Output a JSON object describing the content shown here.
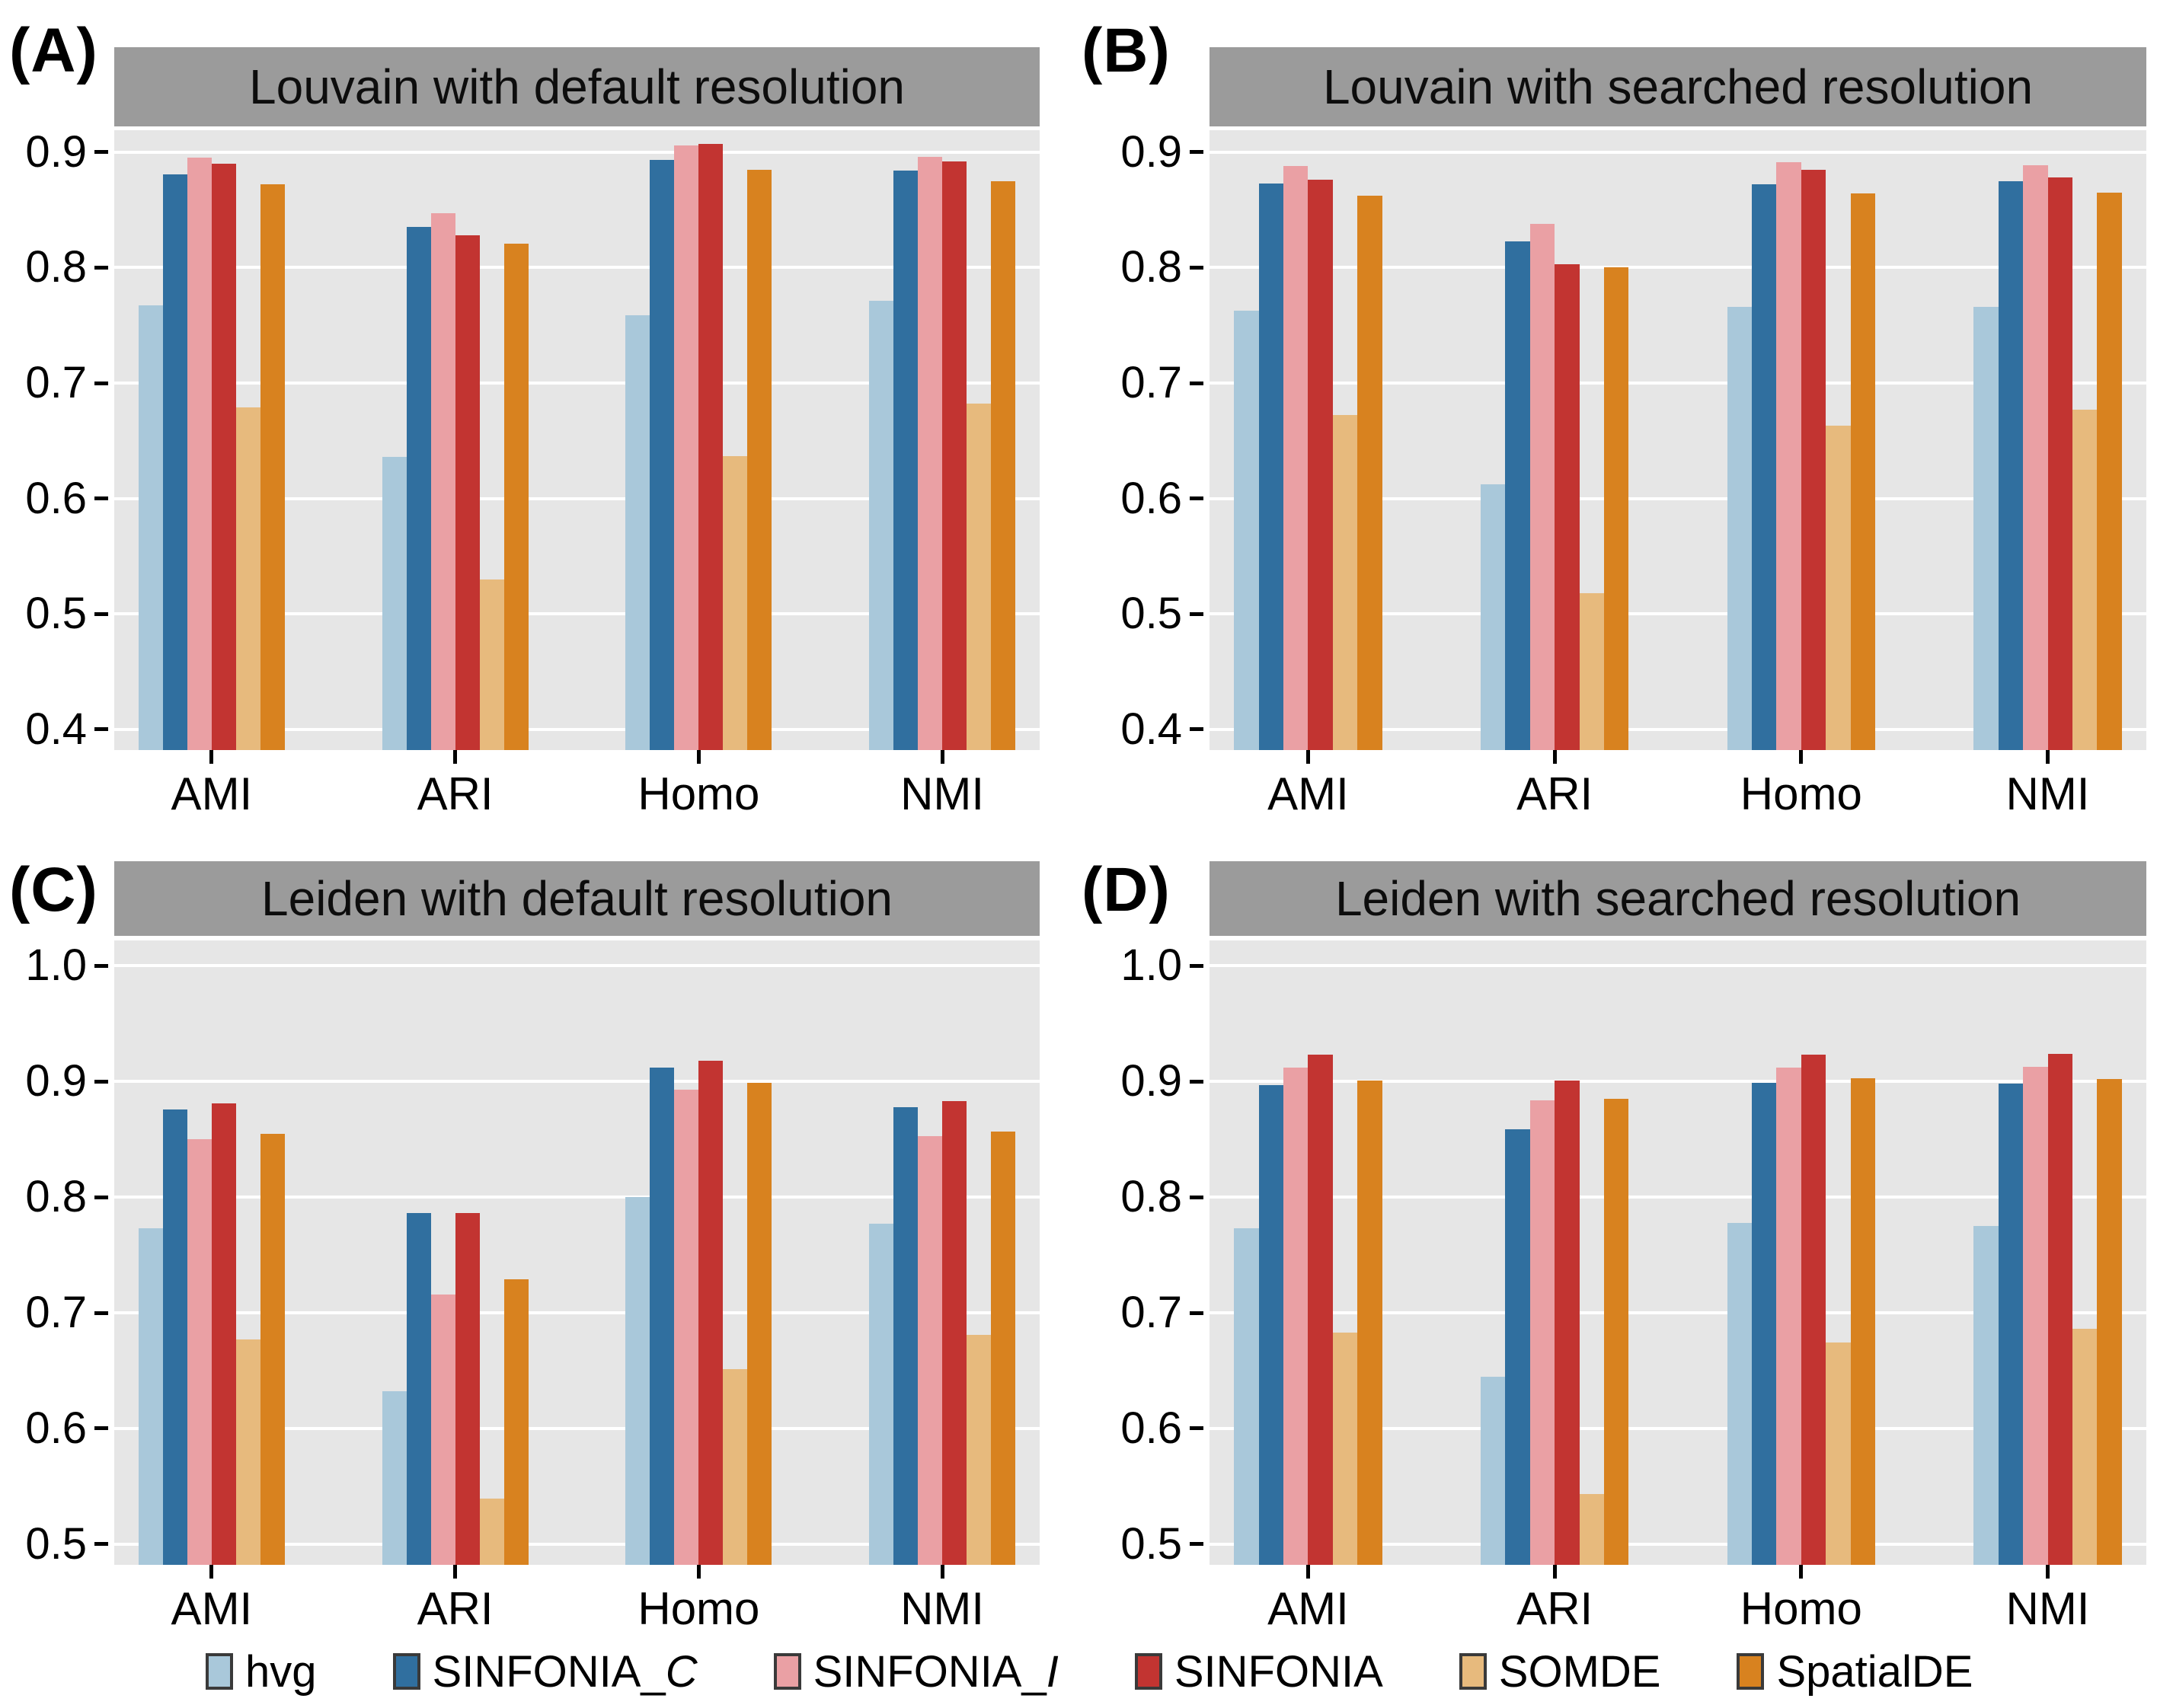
{
  "figure": {
    "background": "#ffffff",
    "panel_background": "#e6e6e6",
    "strip_background": "#9b9b9b",
    "gridline_color": "#ffffff"
  },
  "palette": {
    "hvg": "#a9c8da",
    "SINFONIA_C": "#306f9f",
    "SINFONIA_I": "#eaa0a4",
    "SINFONIA": "#c23431",
    "SOMDE": "#e7ba7d",
    "SpatialDE": "#d8821f"
  },
  "legend": {
    "items": [
      {
        "name": "hvg",
        "label_base": "hvg",
        "label_italic": "",
        "color": "#a9c8da"
      },
      {
        "name": "SINFONIA_C",
        "label_base": "SINFONIA_",
        "label_italic": "C",
        "color": "#306f9f"
      },
      {
        "name": "SINFONIA_I",
        "label_base": "SINFONIA_",
        "label_italic": "I",
        "color": "#eaa0a4"
      },
      {
        "name": "SINFONIA",
        "label_base": "SINFONIA",
        "label_italic": "",
        "color": "#c23431"
      },
      {
        "name": "SOMDE",
        "label_base": "SOMDE",
        "label_italic": "",
        "color": "#e7ba7d"
      },
      {
        "name": "SpatialDE",
        "label_base": "SpatialDE",
        "label_italic": "",
        "color": "#d8821f"
      }
    ]
  },
  "chart_data": [
    {
      "id": "A",
      "tag": "(A)",
      "type": "bar",
      "title": "Louvain with default resolution",
      "xlabel": "",
      "ylabel": "",
      "categories": [
        "AMI",
        "ARI",
        "Homo",
        "NMI"
      ],
      "yticks": [
        0.4,
        0.5,
        0.6,
        0.7,
        0.8,
        0.9
      ],
      "ylim": [
        0.382,
        0.919
      ],
      "grid": "major-horizontal",
      "legend_position": "shared-bottom",
      "series": [
        {
          "name": "hvg",
          "values": [
            0.767,
            0.636,
            0.759,
            0.771
          ]
        },
        {
          "name": "SINFONIA_C",
          "values": [
            0.881,
            0.835,
            0.893,
            0.884
          ]
        },
        {
          "name": "SINFONIA_I",
          "values": [
            0.895,
            0.847,
            0.906,
            0.896
          ]
        },
        {
          "name": "SINFONIA",
          "values": [
            0.89,
            0.828,
            0.907,
            0.892
          ]
        },
        {
          "name": "SOMDE",
          "values": [
            0.679,
            0.53,
            0.637,
            0.682
          ]
        },
        {
          "name": "SpatialDE",
          "values": [
            0.872,
            0.821,
            0.885,
            0.875
          ]
        }
      ]
    },
    {
      "id": "B",
      "tag": "(B)",
      "type": "bar",
      "title": "Louvain with searched resolution",
      "xlabel": "",
      "ylabel": "",
      "categories": [
        "AMI",
        "ARI",
        "Homo",
        "NMI"
      ],
      "yticks": [
        0.4,
        0.5,
        0.6,
        0.7,
        0.8,
        0.9
      ],
      "ylim": [
        0.382,
        0.919
      ],
      "grid": "major-horizontal",
      "legend_position": "shared-bottom",
      "series": [
        {
          "name": "hvg",
          "values": [
            0.763,
            0.612,
            0.766,
            0.766
          ]
        },
        {
          "name": "SINFONIA_C",
          "values": [
            0.873,
            0.823,
            0.872,
            0.875
          ]
        },
        {
          "name": "SINFONIA_I",
          "values": [
            0.888,
            0.838,
            0.891,
            0.889
          ]
        },
        {
          "name": "SINFONIA",
          "values": [
            0.876,
            0.803,
            0.885,
            0.878
          ]
        },
        {
          "name": "SOMDE",
          "values": [
            0.672,
            0.518,
            0.663,
            0.677
          ]
        },
        {
          "name": "SpatialDE",
          "values": [
            0.862,
            0.8,
            0.864,
            0.865
          ]
        }
      ]
    },
    {
      "id": "C",
      "tag": "(C)",
      "type": "bar",
      "title": "Leiden with default resolution",
      "xlabel": "",
      "ylabel": "",
      "categories": [
        "AMI",
        "ARI",
        "Homo",
        "NMI"
      ],
      "yticks": [
        0.5,
        0.6,
        0.7,
        0.8,
        0.9,
        1.0
      ],
      "ylim": [
        0.482,
        1.022
      ],
      "grid": "major-horizontal",
      "legend_position": "shared-bottom",
      "series": [
        {
          "name": "hvg",
          "values": [
            0.773,
            0.632,
            0.8,
            0.777
          ]
        },
        {
          "name": "SINFONIA_C",
          "values": [
            0.876,
            0.786,
            0.912,
            0.878
          ]
        },
        {
          "name": "SINFONIA_I",
          "values": [
            0.85,
            0.716,
            0.893,
            0.853
          ]
        },
        {
          "name": "SINFONIA",
          "values": [
            0.881,
            0.786,
            0.918,
            0.883
          ]
        },
        {
          "name": "SOMDE",
          "values": [
            0.677,
            0.539,
            0.651,
            0.681
          ]
        },
        {
          "name": "SpatialDE",
          "values": [
            0.855,
            0.729,
            0.899,
            0.857
          ]
        }
      ]
    },
    {
      "id": "D",
      "tag": "(D)",
      "type": "bar",
      "title": "Leiden with searched resolution",
      "xlabel": "",
      "ylabel": "",
      "categories": [
        "AMI",
        "ARI",
        "Homo",
        "NMI"
      ],
      "yticks": [
        0.5,
        0.6,
        0.7,
        0.8,
        0.9,
        1.0
      ],
      "ylim": [
        0.482,
        1.022
      ],
      "grid": "major-horizontal",
      "legend_position": "shared-bottom",
      "series": [
        {
          "name": "hvg",
          "values": [
            0.773,
            0.645,
            0.778,
            0.775
          ]
        },
        {
          "name": "SINFONIA_C",
          "values": [
            0.897,
            0.859,
            0.899,
            0.898
          ]
        },
        {
          "name": "SINFONIA_I",
          "values": [
            0.912,
            0.884,
            0.912,
            0.913
          ]
        },
        {
          "name": "SINFONIA",
          "values": [
            0.923,
            0.901,
            0.923,
            0.924
          ]
        },
        {
          "name": "SOMDE",
          "values": [
            0.683,
            0.543,
            0.674,
            0.686
          ]
        },
        {
          "name": "SpatialDE",
          "values": [
            0.901,
            0.885,
            0.903,
            0.902
          ]
        }
      ]
    }
  ]
}
